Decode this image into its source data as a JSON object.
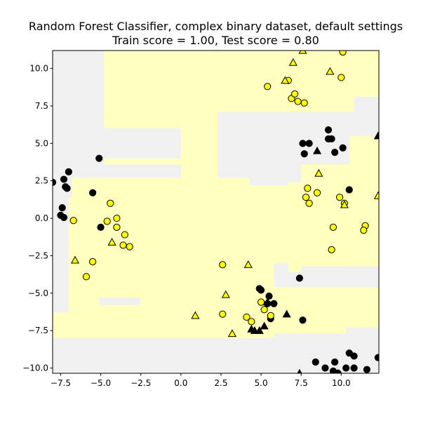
{
  "chart_data": {
    "type": "scatter",
    "title": "Random Forest Classifier, complex binary dataset, default settings",
    "subtitle": "Train score = 1.00, Test score = 0.80",
    "xlabel": "",
    "ylabel": "",
    "xlim": [
      -8.0,
      12.35
    ],
    "ylim": [
      -10.35,
      11.2
    ],
    "x_ticks": [
      -7.5,
      -5.0,
      -2.5,
      0.0,
      2.5,
      5.0,
      7.5,
      10.0
    ],
    "x_tick_labels": [
      "−7.5",
      "−5.0",
      "−2.5",
      "0.0",
      "2.5",
      "5.0",
      "7.5",
      "10.0"
    ],
    "y_ticks": [
      10.0,
      7.5,
      5.0,
      2.5,
      0.0,
      -2.5,
      -5.0,
      -7.5,
      -10.0
    ],
    "y_tick_labels": [
      "10.0",
      "7.5",
      "5.0",
      "2.5",
      "0.0",
      "−2.5",
      "−5.0",
      "−7.5",
      "−10.0"
    ],
    "grid": false,
    "legend": "none",
    "colors": {
      "class_0": "#000000",
      "class_1": "#ffff00",
      "region_class_0": "#f0f0f0",
      "region_class_1": "#ffffbf"
    },
    "decision_regions": {
      "class_0_background": "#f0f0f0",
      "class_1_rectangles": [
        {
          "x": [
            -4.8,
            10.8
          ],
          "y": [
            7.1,
            11.2
          ]
        },
        {
          "x": [
            -4.8,
            12.35
          ],
          "y": [
            8.1,
            11.2
          ]
        },
        {
          "x": [
            -4.8,
            0.0
          ],
          "y": [
            6.0,
            7.1
          ]
        },
        {
          "x": [
            0.0,
            2.3
          ],
          "y": [
            2.7,
            7.1
          ]
        },
        {
          "x": [
            -4.8,
            2.3
          ],
          "y": [
            3.6,
            4.0
          ]
        },
        {
          "x": [
            -6.8,
            4.3
          ],
          "y": [
            -3.2,
            2.7
          ]
        },
        {
          "x": [
            -7.0,
            4.3
          ],
          "y": [
            -4.5,
            1.4
          ]
        },
        {
          "x": [
            -7.0,
            -5.1
          ],
          "y": [
            -6.3,
            1.4
          ]
        },
        {
          "x": [
            -5.1,
            -2.5
          ],
          "y": [
            -5.3,
            -4.5
          ]
        },
        {
          "x": [
            -2.5,
            4.3
          ],
          "y": [
            -6.3,
            -4.5
          ]
        },
        {
          "x": [
            -7.0,
            4.3
          ],
          "y": [
            -6.3,
            -5.8
          ]
        },
        {
          "x": [
            -8.0,
            4.3
          ],
          "y": [
            -8.0,
            -6.3
          ]
        },
        {
          "x": [
            2.3,
            5.8
          ],
          "y": [
            -8.0,
            2.2
          ]
        },
        {
          "x": [
            5.8,
            6.7
          ],
          "y": [
            -3.0,
            2.2
          ]
        },
        {
          "x": [
            6.7,
            7.5
          ],
          "y": [
            -3.6,
            2.4
          ]
        },
        {
          "x": [
            7.5,
            12.35
          ],
          "y": [
            -3.2,
            3.6
          ]
        },
        {
          "x": [
            10.5,
            12.35
          ],
          "y": [
            -3.2,
            5.5
          ]
        },
        {
          "x": [
            4.3,
            12.35
          ],
          "y": [
            -7.3,
            -4.6
          ]
        },
        {
          "x": [
            4.3,
            10.3
          ],
          "y": [
            -7.7,
            -7.3
          ]
        }
      ]
    },
    "series": [
      {
        "class": 0,
        "marker": "circle",
        "points": [
          [
            -8.0,
            2.4
          ],
          [
            -7.3,
            2.6
          ],
          [
            -7.1,
            2.0
          ],
          [
            -7.0,
            3.1
          ],
          [
            -7.2,
            2.1
          ],
          [
            -7.5,
            0.2
          ],
          [
            -7.4,
            0.7
          ],
          [
            -7.3,
            0.05
          ],
          [
            -5.5,
            1.7
          ],
          [
            -5.1,
            4.0
          ],
          [
            -5.0,
            -0.6
          ],
          [
            7.6,
            5.0
          ],
          [
            8.0,
            5.0
          ],
          [
            7.7,
            4.3
          ],
          [
            9.2,
            5.9
          ],
          [
            9.2,
            5.3
          ],
          [
            9.4,
            5.3
          ],
          [
            9.6,
            4.4
          ],
          [
            10.1,
            4.7
          ],
          [
            10.5,
            1.9
          ],
          [
            4.9,
            -4.7
          ],
          [
            5.0,
            -4.8
          ],
          [
            5.5,
            -5.2
          ],
          [
            5.4,
            -5.7
          ],
          [
            5.8,
            -5.7
          ],
          [
            5.6,
            -6.7
          ],
          [
            7.4,
            -4.0
          ],
          [
            7.6,
            -6.8
          ],
          [
            8.4,
            -9.6
          ],
          [
            9.0,
            -10.0
          ],
          [
            9.5,
            -10.2
          ],
          [
            9.6,
            -9.6
          ],
          [
            10.3,
            -10.0
          ],
          [
            10.5,
            -9.0
          ],
          [
            10.8,
            -9.2
          ],
          [
            10.8,
            -10.0
          ],
          [
            11.6,
            -10.1
          ],
          [
            12.3,
            -9.3
          ],
          [
            9.8,
            -10.35
          ]
        ]
      },
      {
        "class": 1,
        "marker": "circle",
        "points": [
          [
            5.4,
            8.8
          ],
          [
            6.7,
            9.2
          ],
          [
            6.9,
            8.0
          ],
          [
            7.1,
            8.3
          ],
          [
            7.3,
            7.8
          ],
          [
            7.7,
            7.7
          ],
          [
            10.0,
            9.4
          ],
          [
            10.1,
            11.1
          ],
          [
            -4.4,
            1.0
          ],
          [
            -4.0,
            0.0
          ],
          [
            -4.6,
            -0.2
          ],
          [
            -4.0,
            -0.6
          ],
          [
            -6.7,
            -0.15
          ],
          [
            -3.5,
            -1.1
          ],
          [
            -3.6,
            -1.8
          ],
          [
            -3.2,
            -1.9
          ],
          [
            -5.5,
            -2.9
          ],
          [
            -5.9,
            -3.9
          ],
          [
            2.6,
            -3.1
          ],
          [
            2.6,
            -6.4
          ],
          [
            5.0,
            -5.6
          ],
          [
            5.2,
            -6.1
          ],
          [
            4.1,
            -6.6
          ],
          [
            4.4,
            -6.9
          ],
          [
            5.6,
            -6.5
          ],
          [
            7.9,
            2.0
          ],
          [
            7.8,
            1.4
          ],
          [
            8.0,
            1.0
          ],
          [
            8.5,
            1.7
          ],
          [
            9.9,
            1.4
          ],
          [
            10.2,
            1.0
          ],
          [
            9.5,
            -0.6
          ],
          [
            11.5,
            -0.5
          ],
          [
            11.4,
            -0.8
          ],
          [
            9.4,
            -2.1
          ]
        ]
      },
      {
        "class": 0,
        "marker": "triangle",
        "points": [
          [
            8.5,
            4.5
          ],
          [
            12.3,
            5.5
          ],
          [
            5.4,
            -5.6
          ],
          [
            5.2,
            -7.2
          ],
          [
            4.6,
            -7.5
          ],
          [
            4.4,
            -7.4
          ],
          [
            4.9,
            -7.5
          ],
          [
            6.6,
            -6.4
          ],
          [
            7.4,
            -10.35
          ],
          [
            9.8,
            -10.35
          ]
        ]
      },
      {
        "class": 1,
        "marker": "triangle",
        "points": [
          [
            7.6,
            11.2
          ],
          [
            7.0,
            10.4
          ],
          [
            6.5,
            9.2
          ],
          [
            9.3,
            9.8
          ],
          [
            8.6,
            3.0
          ],
          [
            12.3,
            1.5
          ],
          [
            10.2,
            0.9
          ],
          [
            -6.6,
            -2.8
          ],
          [
            -4.3,
            -1.6
          ],
          [
            4.2,
            -3.1
          ],
          [
            2.8,
            -5.1
          ],
          [
            0.9,
            -6.5
          ],
          [
            3.2,
            -7.7
          ]
        ]
      }
    ]
  }
}
